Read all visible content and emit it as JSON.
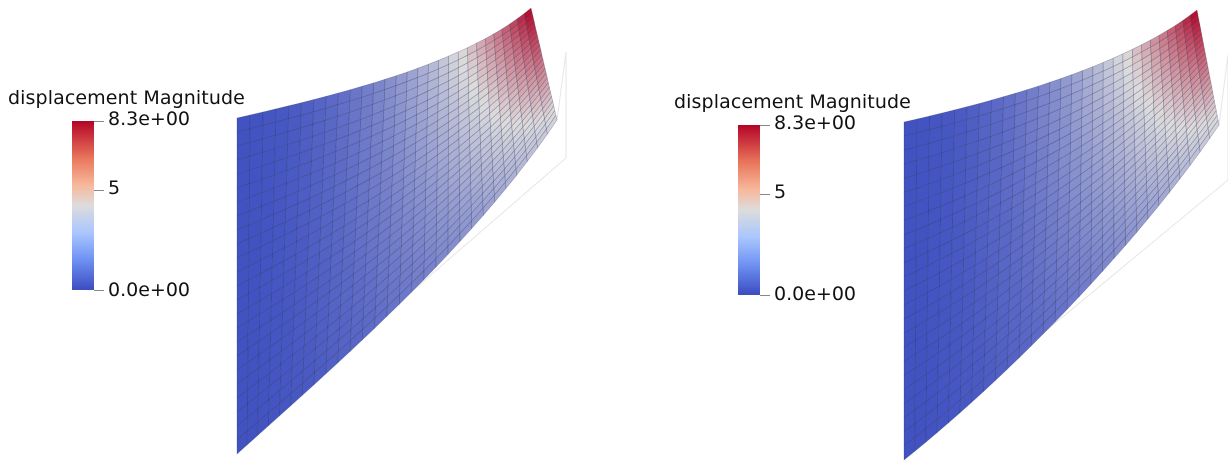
{
  "views": [
    {
      "legend": {
        "title": "displacement Magnitude",
        "max_label": "8.3e+00",
        "mid_label": "5",
        "min_label": "0.0e+00"
      }
    },
    {
      "legend": {
        "title": "displacement Magnitude",
        "max_label": "8.3e+00",
        "mid_label": "5",
        "min_label": "0.0e+00"
      }
    }
  ],
  "colormap": {
    "low": "#3b4cc0",
    "mid": "#dddcdc",
    "high": "#b40426"
  },
  "mesh_line_color": "#1f2a55"
}
